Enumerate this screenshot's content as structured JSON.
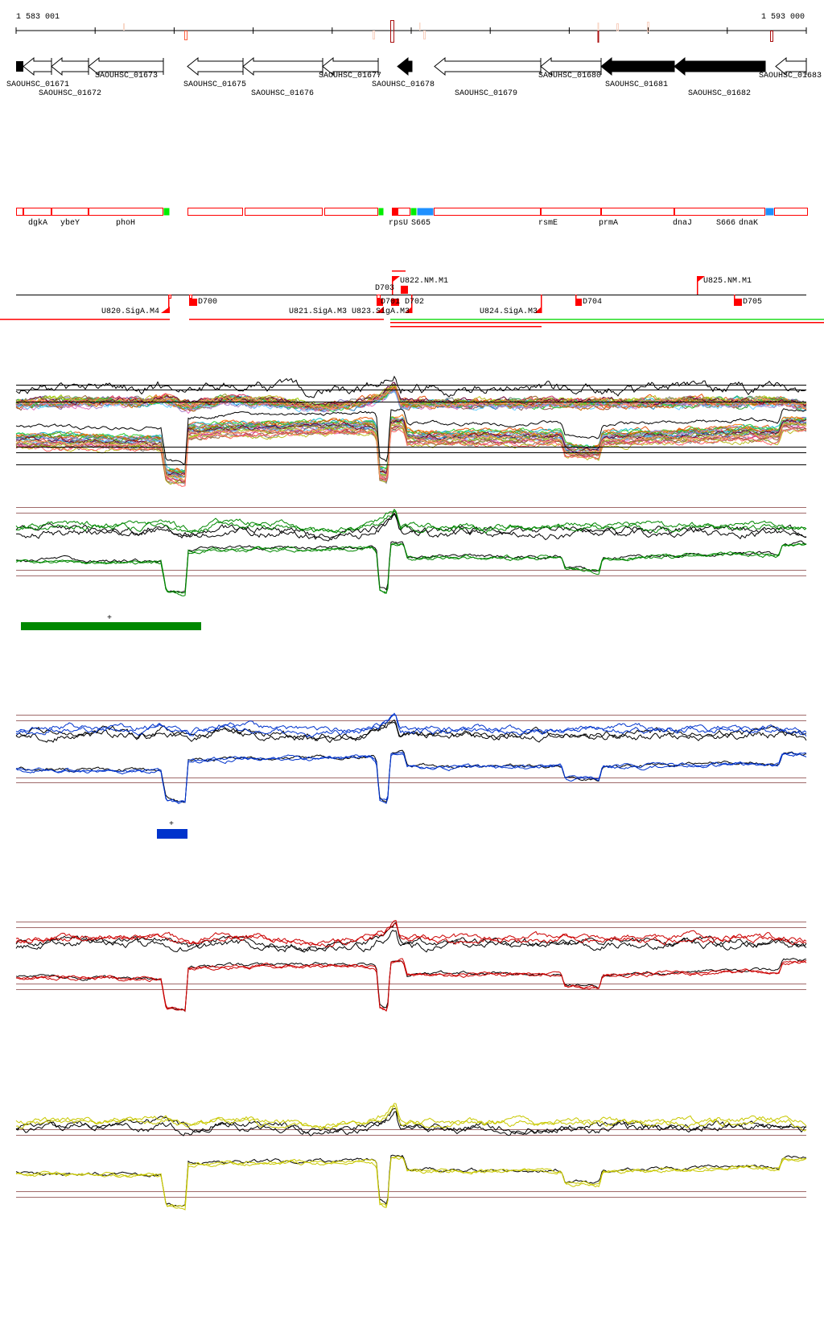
{
  "ruler": {
    "start_label": "1 583 001",
    "end_label": "1 593 000",
    "start": 1583001,
    "end": 1593000
  },
  "genes": [
    {
      "label": "SAOUHSC_01671"
    },
    {
      "label": "SAOUHSC_01672"
    },
    {
      "label": "SAOUHSC_01673"
    },
    {
      "label": "SAOUHSC_01675"
    },
    {
      "label": "SAOUHSC_01676"
    },
    {
      "label": "SAOUHSC_01677"
    },
    {
      "label": "SAOUHSC_01678"
    },
    {
      "label": "SAOUHSC_01679"
    },
    {
      "label": "SAOUHSC_01680"
    },
    {
      "label": "SAOUHSC_01681"
    },
    {
      "label": "SAOUHSC_01682"
    },
    {
      "label": "SAOUHSC_01683"
    }
  ],
  "features": [
    "dgkA",
    "ybeY",
    "phoH",
    "rpsU",
    "S665",
    "rsmE",
    "prmA",
    "dnaJ",
    "S666",
    "dnaK"
  ],
  "annotations": {
    "u820": "U820.SigA.M4",
    "d700": "D700",
    "u821": "U821.SigA.M3",
    "u823": "U823.SigA.M3",
    "d701": "D701",
    "d703": "D703",
    "u822": "U822.NM.M1",
    "d702": "D702",
    "u824": "U824.SigA.M3",
    "d704": "D704",
    "u825": "U825.NM.M1",
    "d705": "D705"
  },
  "colors": {
    "green": "#008800",
    "blue": "#0033cc",
    "red": "#cc0000",
    "yellow": "#c8c800",
    "ref": "#a06a6a"
  },
  "segments": {
    "green_plus": "+",
    "blue_plus": "+"
  },
  "profiles": {
    "upper": [
      [
        1583001,
        0
      ],
      [
        1583800,
        0.3
      ],
      [
        1584600,
        0.2
      ],
      [
        1584900,
        0.6
      ],
      [
        1585200,
        -0.4
      ],
      [
        1585600,
        0.5
      ],
      [
        1586300,
        0.2
      ],
      [
        1586800,
        -0.5
      ],
      [
        1587400,
        0.1
      ],
      [
        1587650,
        0.9
      ],
      [
        1587800,
        2.2
      ],
      [
        1587860,
        0
      ],
      [
        1590000,
        0.1
      ],
      [
        1592300,
        0.2
      ],
      [
        1592700,
        0.3
      ],
      [
        1593000,
        -0.3
      ]
    ],
    "lower": [
      [
        1583001,
        0
      ],
      [
        1584834,
        -0.2
      ],
      [
        1584900,
        -3.2
      ],
      [
        1585140,
        -3.5
      ],
      [
        1585180,
        0.9
      ],
      [
        1585600,
        1.1
      ],
      [
        1587500,
        1.3
      ],
      [
        1587560,
        1.0
      ],
      [
        1587600,
        -3.0
      ],
      [
        1587700,
        -3.4
      ],
      [
        1587740,
        1.6
      ],
      [
        1587900,
        1.7
      ],
      [
        1587950,
        0.3
      ],
      [
        1589900,
        0.3
      ],
      [
        1589950,
        -0.9
      ],
      [
        1590380,
        -1.1
      ],
      [
        1590420,
        0.2
      ],
      [
        1592300,
        0.7
      ],
      [
        1592650,
        0.5
      ],
      [
        1592700,
        1.6
      ],
      [
        1593000,
        1.6
      ]
    ]
  }
}
